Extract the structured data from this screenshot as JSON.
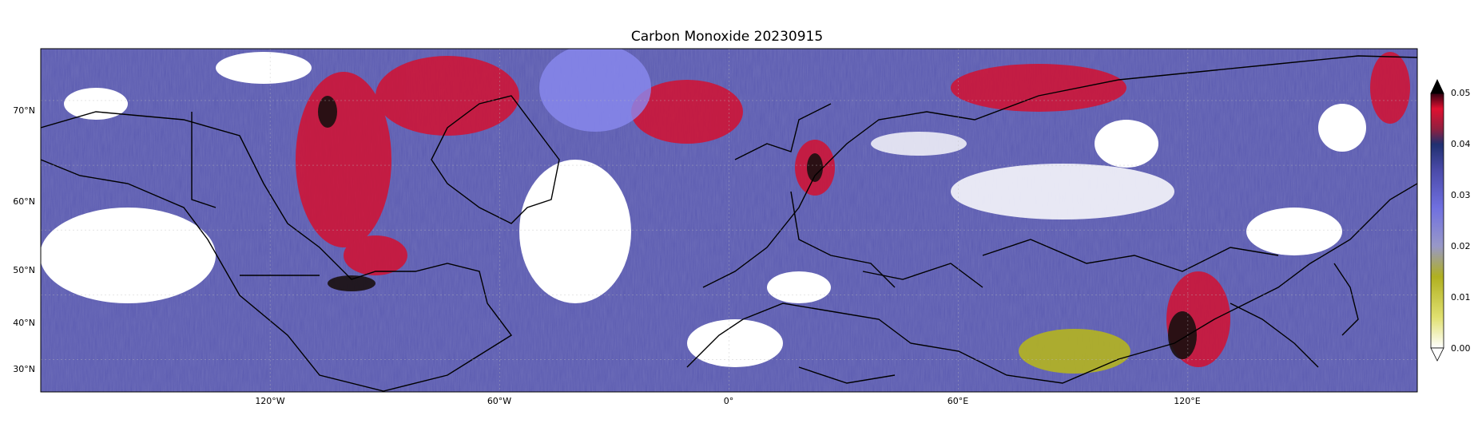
{
  "title": "Carbon Monoxide 20230915",
  "map": {
    "projection": "plate-carree",
    "extent_lon": [
      -180,
      180
    ],
    "extent_lat": [
      25,
      78
    ],
    "lat_ticks": [
      {
        "value": 70,
        "label": "70°N"
      },
      {
        "value": 60,
        "label": "60°N"
      },
      {
        "value": 50,
        "label": "50°N"
      },
      {
        "value": 40,
        "label": "40°N"
      },
      {
        "value": 30,
        "label": "30°N"
      }
    ],
    "lon_ticks": [
      {
        "value": -120,
        "label": "120°W"
      },
      {
        "value": -60,
        "label": "60°W"
      },
      {
        "value": 0,
        "label": "0°"
      },
      {
        "value": 60,
        "label": "60°E"
      },
      {
        "value": 120,
        "label": "120°E"
      }
    ],
    "missing_color": "#ffffff",
    "coastline_color": "#000000"
  },
  "colorbar": {
    "min": 0.0,
    "max": 0.05,
    "extend": "both",
    "ticks": [
      "0.05",
      "0.04",
      "0.03",
      "0.02",
      "0.01",
      "0.00"
    ],
    "colors": [
      "#ffffff",
      "#c8c820",
      "#b0b020",
      "#8080e8",
      "#5a5ab8",
      "#2a3a80",
      "#8a1030",
      "#e01030",
      "#000000"
    ]
  }
}
